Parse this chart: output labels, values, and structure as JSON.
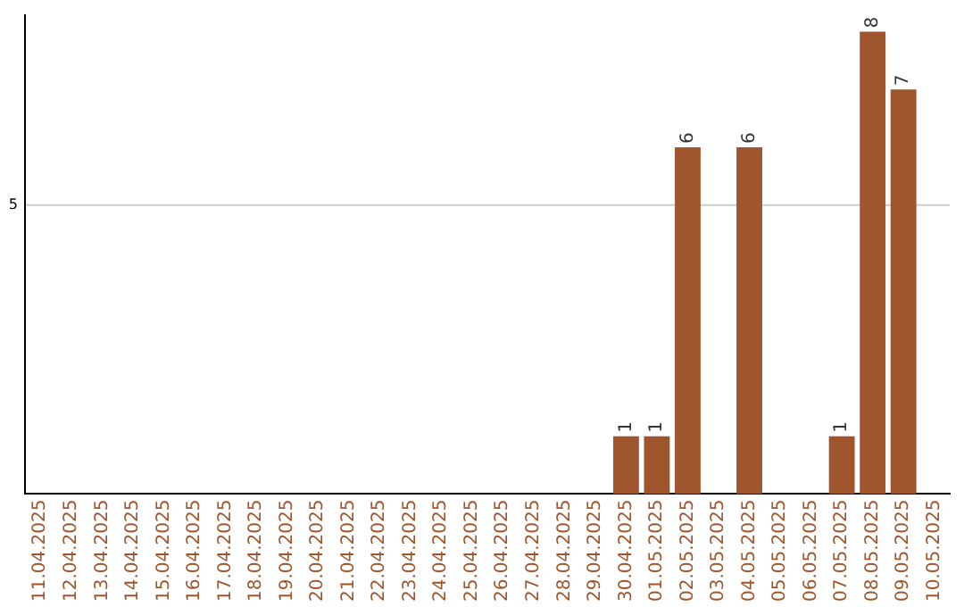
{
  "chart_data": {
    "type": "bar",
    "categories": [
      "11.04.2025",
      "12.04.2025",
      "13.04.2025",
      "14.04.2025",
      "15.04.2025",
      "16.04.2025",
      "17.04.2025",
      "18.04.2025",
      "19.04.2025",
      "20.04.2025",
      "21.04.2025",
      "22.04.2025",
      "23.04.2025",
      "24.04.2025",
      "25.04.2025",
      "26.04.2025",
      "27.04.2025",
      "28.04.2025",
      "29.04.2025",
      "30.04.2025",
      "01.05.2025",
      "02.05.2025",
      "03.05.2025",
      "04.05.2025",
      "05.05.2025",
      "06.05.2025",
      "07.05.2025",
      "08.05.2025",
      "09.05.2025",
      "10.05.2025"
    ],
    "values": [
      null,
      null,
      null,
      null,
      null,
      null,
      null,
      null,
      null,
      null,
      null,
      null,
      null,
      null,
      null,
      null,
      null,
      null,
      null,
      1,
      1,
      6,
      null,
      6,
      null,
      null,
      1,
      8,
      7,
      null
    ],
    "data_labels": true,
    "ylim": [
      0,
      8.3
    ],
    "ref_lines": [
      {
        "axis": "y",
        "value": 5,
        "label": "5",
        "color": "#cccccc"
      }
    ],
    "color": "#a0562c",
    "legend": false
  }
}
